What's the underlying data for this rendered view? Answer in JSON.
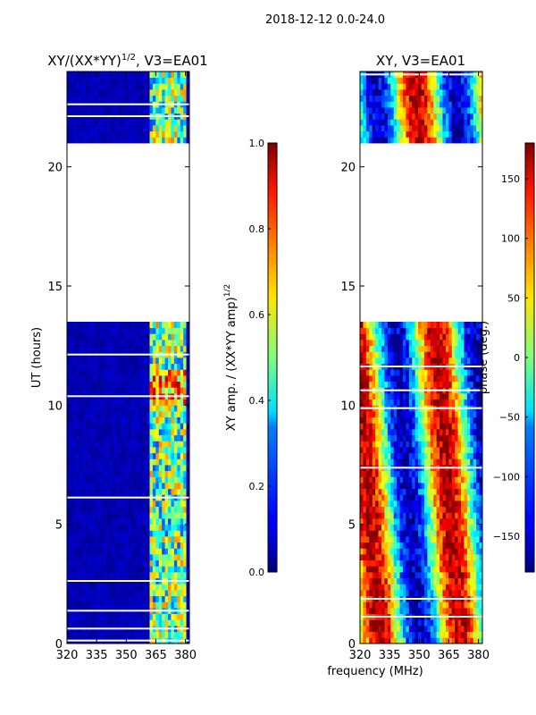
{
  "suptitle": "2018-12-12 0.0-24.0",
  "chart_data": [
    {
      "type": "heatmap",
      "title": "XY/(XX*YY)^1/2, V3=EA01",
      "title_main": "XY/(XX*YY)",
      "title_sup": "1/2",
      "title_tail": ", V3=EA01",
      "xlabel": "",
      "ylabel": "UT (hours)",
      "xlim": [
        320,
        382
      ],
      "ylim": [
        0,
        24
      ],
      "xticks": [
        320,
        335,
        350,
        365,
        380
      ],
      "yticks": [
        0,
        5,
        10,
        15,
        20
      ],
      "colorbar": {
        "label": "XY amp. / (XX*YY amp)^1/2",
        "label_main": "XY amp. / (XX*YY amp)",
        "label_sup": "1/2",
        "min": 0.0,
        "max": 1.0,
        "ticks": [
          0.0,
          0.2,
          0.4,
          0.6,
          0.8,
          1.0
        ],
        "tick_labels": [
          "0.0",
          "0.2",
          "0.4",
          "0.6",
          "0.8",
          "1.0"
        ]
      },
      "data_ut_ranges": [
        [
          0,
          13.6
        ],
        [
          21.0,
          24.0
        ]
      ],
      "signal_band_mhz": [
        362,
        380
      ]
    },
    {
      "type": "heatmap",
      "title": "XY, V3=EA01",
      "xlabel": "frequency (MHz)",
      "ylabel": "",
      "xlim": [
        320,
        382
      ],
      "ylim": [
        0,
        24
      ],
      "xticks": [
        320,
        335,
        350,
        365,
        380
      ],
      "yticks": [
        0,
        5,
        10,
        15,
        20
      ],
      "colorbar": {
        "label": "phase (deg.)",
        "min": -180,
        "max": 180,
        "ticks": [
          -150,
          -100,
          -50,
          0,
          50,
          100,
          150
        ],
        "tick_labels": [
          "−150",
          "−100",
          "−50",
          "0",
          "50",
          "100",
          "150"
        ]
      },
      "data_ut_ranges": [
        [
          0,
          13.6
        ],
        [
          21.0,
          24.0
        ]
      ]
    }
  ]
}
